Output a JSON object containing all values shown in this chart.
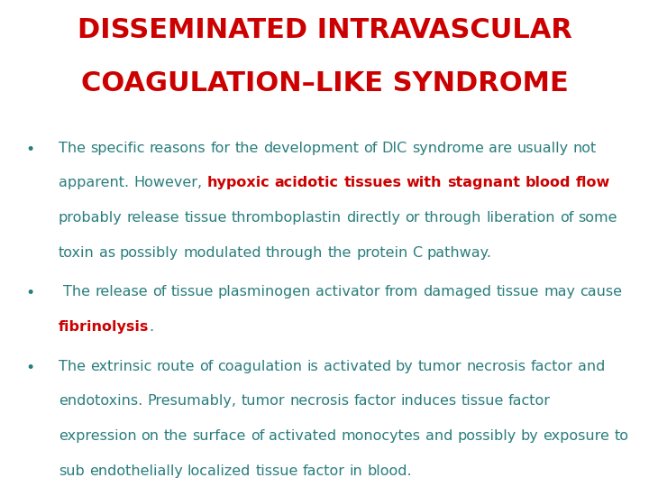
{
  "title_line1": "DISSEMINATED INTRAVASCULAR",
  "title_line2": "COAGULATION–LIKE SYNDROME",
  "title_color": "#cc0000",
  "background_color": "#ffffff",
  "teal_color": "#2a7d7d",
  "red_color": "#cc0000",
  "bullet1_segments": [
    {
      "text": "The specific reasons for the development of DIC syndrome are usually not apparent. However, ",
      "color": "#2a7d7d",
      "bold": false
    },
    {
      "text": "hypoxic acidotic tissues with stagnant blood flow",
      "color": "#cc0000",
      "bold": true
    },
    {
      "text": " probably release tissue thromboplastin directly or through liberation of some toxin as possibly modulated through the protein C pathway.",
      "color": "#2a7d7d",
      "bold": false
    }
  ],
  "bullet2_segments": [
    {
      "text": " The release of tissue plasminogen activator from damaged tissue may cause ",
      "color": "#2a7d7d",
      "bold": false
    },
    {
      "text": "fibrinolysis",
      "color": "#cc0000",
      "bold": true
    },
    {
      "text": ".",
      "color": "#2a7d7d",
      "bold": false
    }
  ],
  "bullet3_segments": [
    {
      "text": "The extrinsic route of coagulation is activated by tumor necrosis factor and endotoxins. Presumably, tumor necrosis factor induces tissue factor expression on the surface of activated monocytes and possibly by exposure to sub endothelially localized tissue factor in blood.",
      "color": "#2a7d7d",
      "bold": false
    }
  ],
  "font_size_title": 22,
  "font_size_body": 11.5,
  "figwidth": 7.2,
  "figheight": 5.4,
  "dpi": 100
}
